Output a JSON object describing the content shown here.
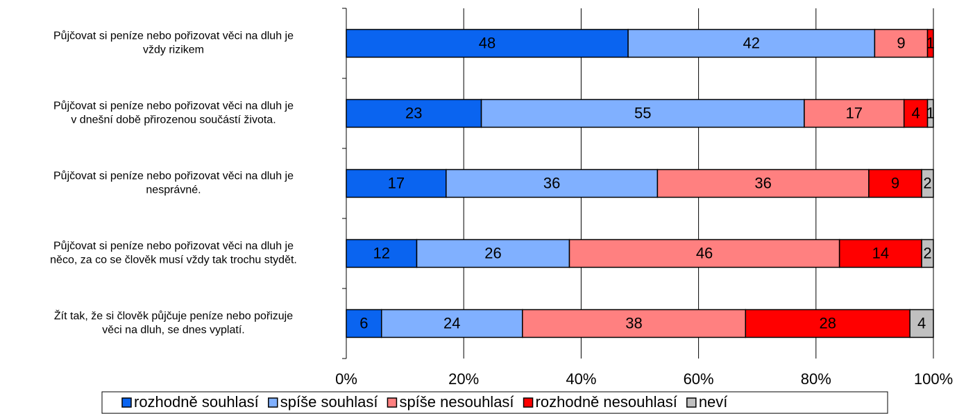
{
  "chart_data": {
    "type": "bar",
    "orientation": "horizontal",
    "stacked": true,
    "categories": [
      [
        "Půjčovat si peníze nebo pořizovat věci na dluh je",
        "vždy rizikem"
      ],
      [
        "Půjčovat si peníze nebo pořizovat věci na dluh je",
        "v dnešní době přirozenou součástí života."
      ],
      [
        "Půjčovat si peníze nebo pořizovat věci na dluh je",
        "nesprávné."
      ],
      [
        "Půjčovat si peníze nebo pořizovat věci na dluh je",
        "něco, za co se člověk musí vždy tak trochu stydět."
      ],
      [
        "Žít tak, že si člověk půjčuje peníze nebo pořizuje",
        "věci na dluh, se dnes vyplatí."
      ]
    ],
    "series": [
      {
        "name": "rozhodně souhlasí",
        "color": "#0a64f0",
        "values": [
          48,
          23,
          17,
          12,
          6
        ]
      },
      {
        "name": "spíše souhlasí",
        "color": "#80b0ff",
        "values": [
          42,
          55,
          36,
          26,
          24
        ]
      },
      {
        "name": "spíše nesouhlasí",
        "color": "#ff8080",
        "values": [
          9,
          17,
          36,
          46,
          38
        ]
      },
      {
        "name": "rozhodně nesouhlasí",
        "color": "#ff0000",
        "values": [
          1,
          4,
          9,
          14,
          28
        ]
      },
      {
        "name": "neví",
        "color": "#c0c0c0",
        "values": [
          null,
          1,
          2,
          2,
          4
        ]
      }
    ],
    "xlim": [
      0,
      100
    ],
    "xticks": [
      {
        "value": 0,
        "label": "0%"
      },
      {
        "value": 20,
        "label": "20%"
      },
      {
        "value": 40,
        "label": "40%"
      },
      {
        "value": 60,
        "label": "60%"
      },
      {
        "value": 80,
        "label": "80%"
      },
      {
        "value": 100,
        "label": "100%"
      }
    ],
    "grid": true,
    "legend": "bottom"
  }
}
